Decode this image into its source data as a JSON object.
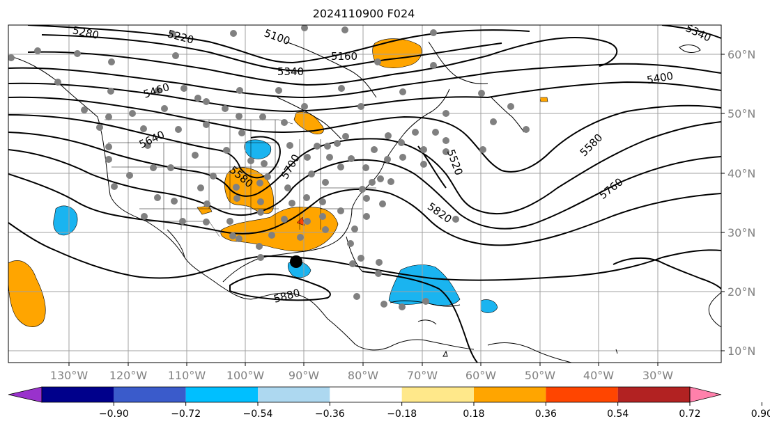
{
  "title": "2024110900 F024",
  "lat_labels": [
    "60°N",
    "50°N",
    "40°N",
    "30°N",
    "20°N",
    "10°N"
  ],
  "lon_labels": [
    "130°W",
    "120°W",
    "110°W",
    "100°W",
    "90°W",
    "80°W",
    "70°W",
    "60°W",
    "50°W",
    "40°W",
    "30°W"
  ],
  "contour_labels": [
    "5280",
    "5220",
    "5100",
    "5340",
    "5160",
    "5340",
    "5460",
    "5400",
    "5640",
    "5580",
    "5700",
    "5580",
    "5520",
    "5820",
    "5760",
    "5880"
  ],
  "colorbar": {
    "ticks": [
      "−0.90",
      "−0.72",
      "−0.54",
      "−0.36",
      "−0.18",
      "0.18",
      "0.36",
      "0.54",
      "0.72",
      "0.90"
    ],
    "colors": [
      "#9932cc",
      "#00008b",
      "#3a5bcb",
      "#00bfff",
      "#add8f0",
      "#ffffff",
      "#ffe88a",
      "#ffa500",
      "#ff4500",
      "#b22222",
      "#ff80ab"
    ]
  },
  "colors": {
    "positive_fill": "#ffa500",
    "negative_fill": "#1ab4f0",
    "station": "#808080",
    "marker": "#000000",
    "grid": "#a0a0a0"
  }
}
